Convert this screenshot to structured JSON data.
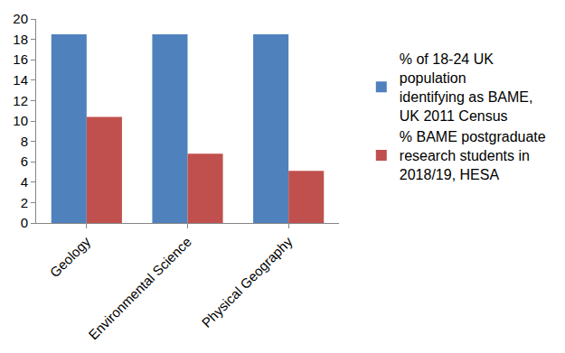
{
  "chart_data": {
    "type": "bar",
    "categories": [
      "Geology",
      "Environmental Science",
      "Physical Geography"
    ],
    "series": [
      {
        "name": "% of 18-24 UK population identifying as BAME, UK 2011 Census",
        "color": "#4f81bd",
        "values": [
          18.5,
          18.5,
          18.5
        ]
      },
      {
        "name": "% BAME postgraduate research students in 2018/19, HESA",
        "color": "#c0504d",
        "values": [
          10.4,
          6.8,
          5.1
        ]
      }
    ],
    "ylim": [
      0,
      20
    ],
    "yticks": [
      0,
      2,
      4,
      6,
      8,
      10,
      12,
      14,
      16,
      18,
      20
    ],
    "grid": false,
    "legend": "right"
  }
}
